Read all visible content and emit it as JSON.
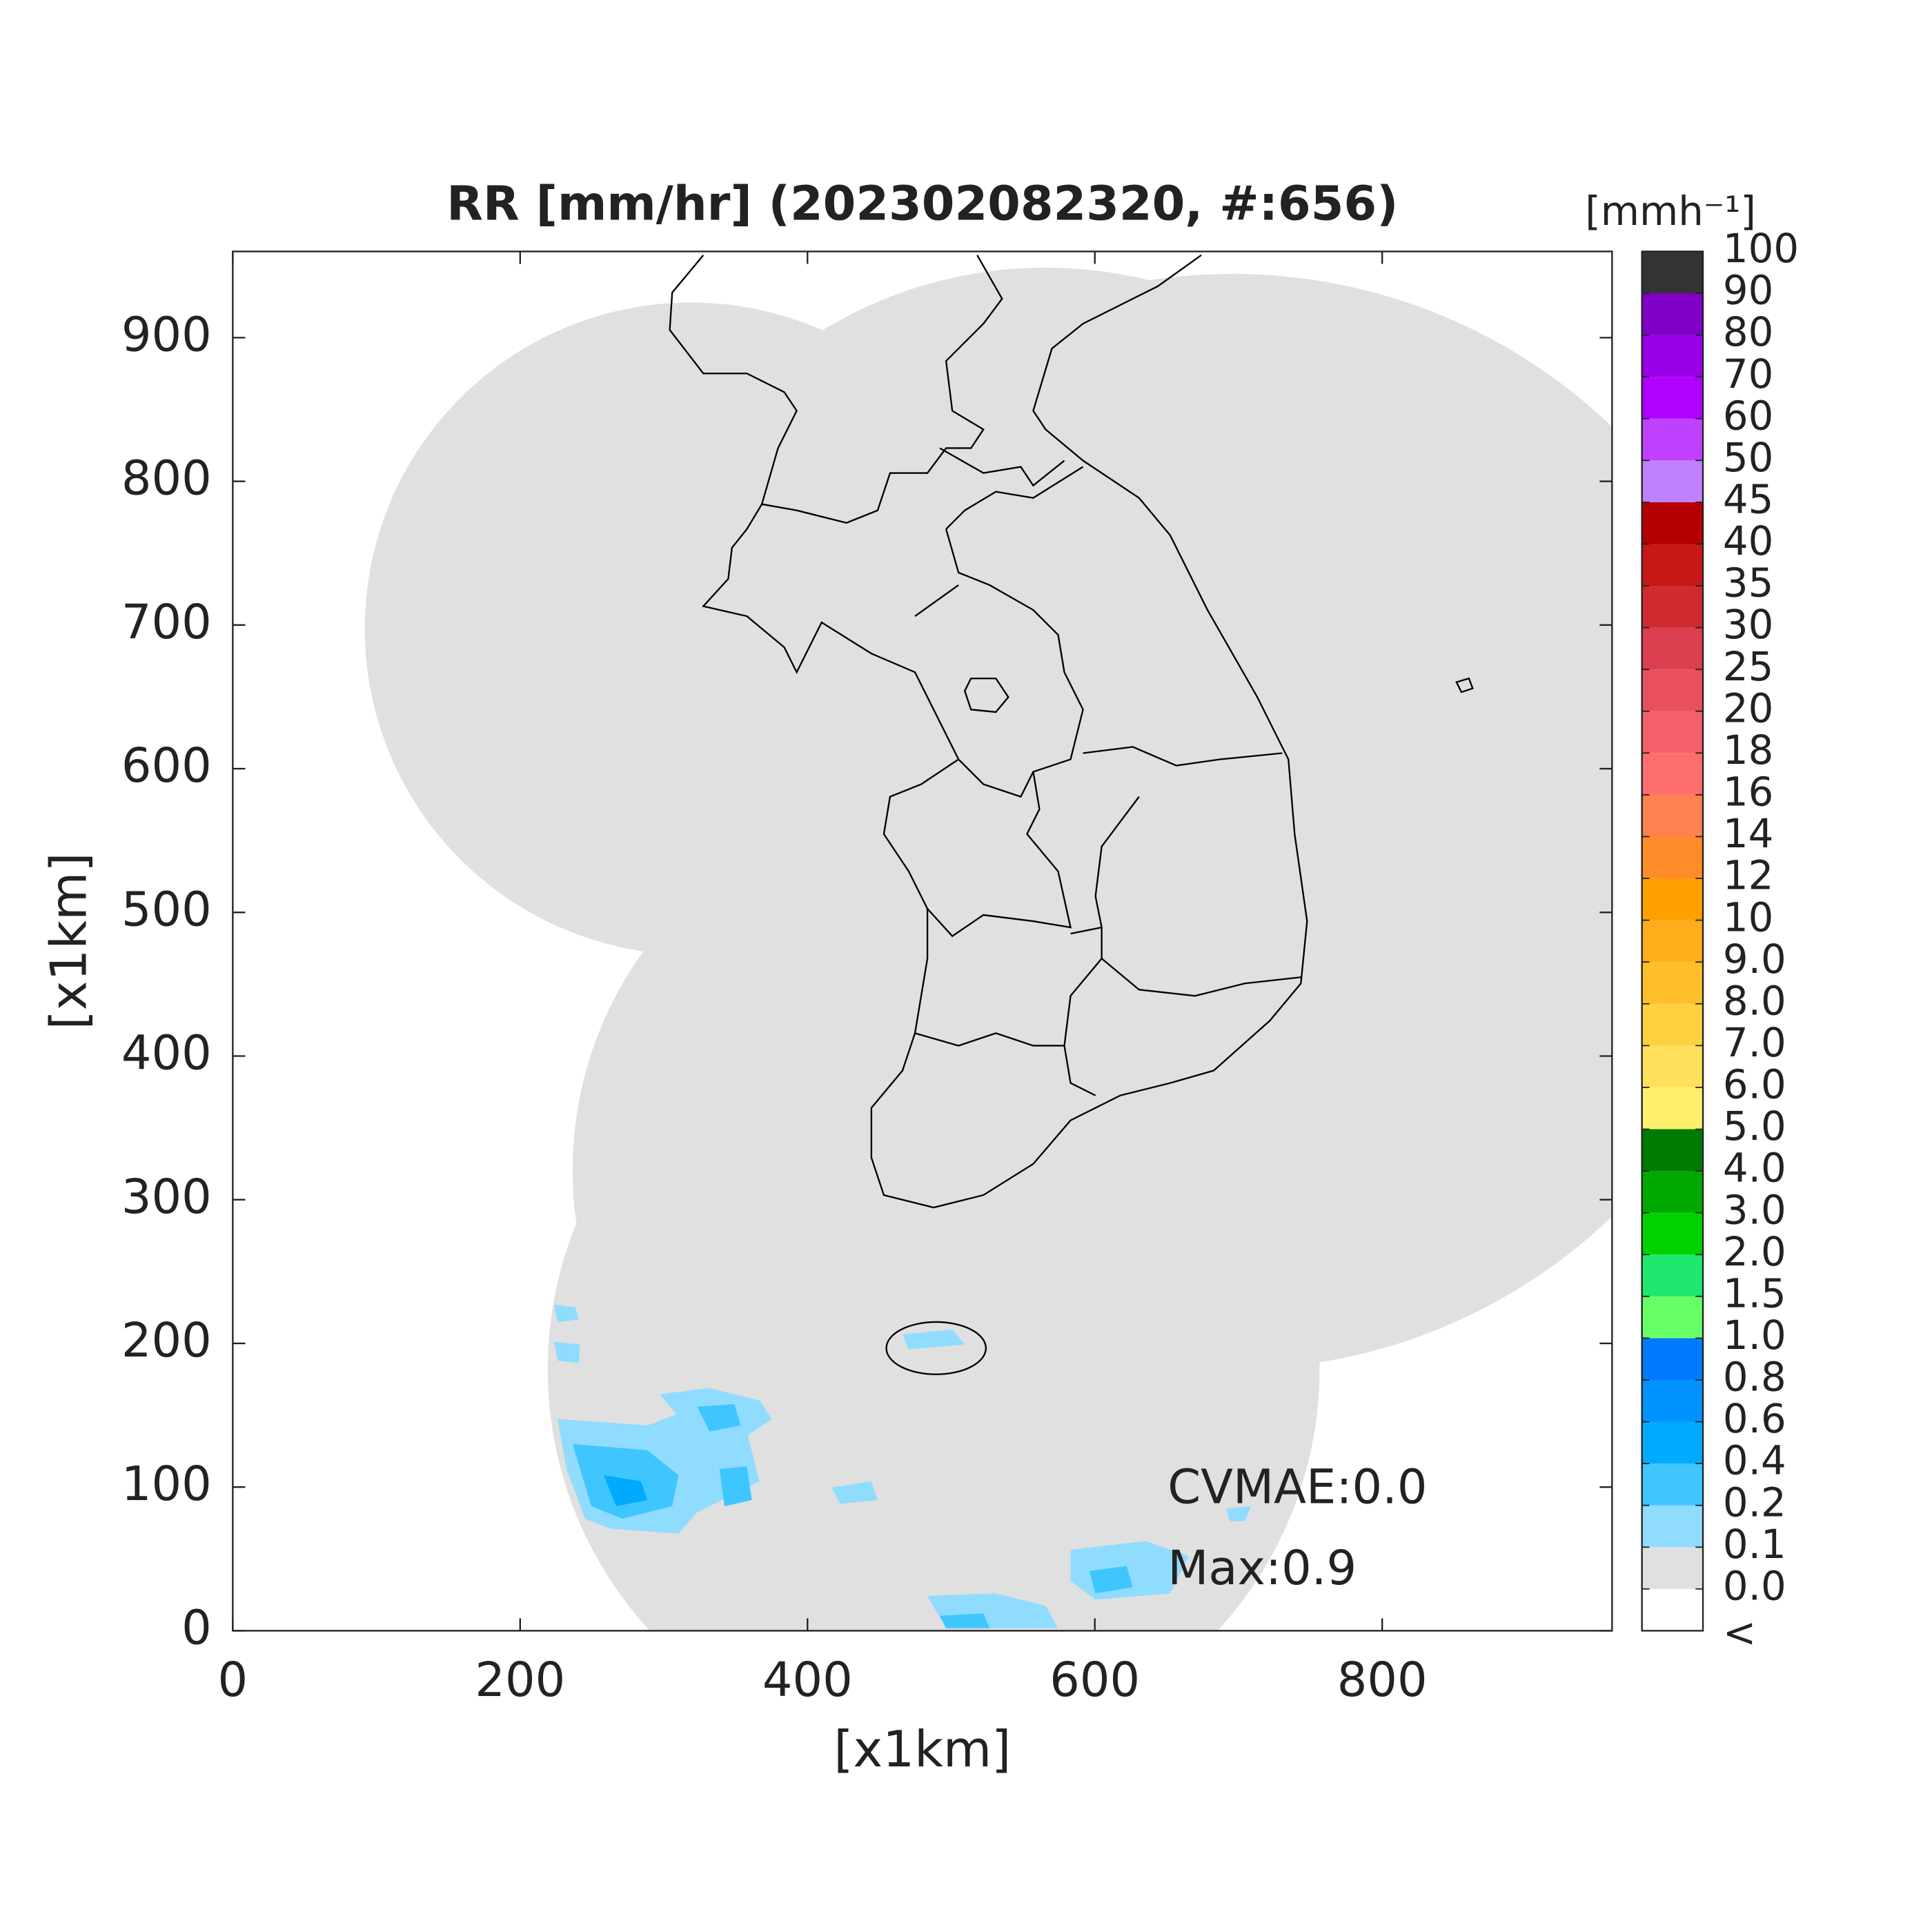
{
  "chart_data": {
    "type": "map",
    "title": "RR [mm/hr] (202302082320, #:656)",
    "xlabel": "[x1km]",
    "ylabel": "[x1km]",
    "xlim": [
      0,
      960
    ],
    "ylim": [
      0,
      960
    ],
    "xticks": [
      0,
      200,
      400,
      600,
      800
    ],
    "yticks": [
      0,
      100,
      200,
      300,
      400,
      500,
      600,
      700,
      800,
      900
    ],
    "annotations": [
      "CVMAE:0.0",
      "Max:0.9"
    ],
    "colorbar": {
      "unit": "[mmh⁻¹]",
      "labels": [
        "<",
        "0.0",
        "0.1",
        "0.2",
        "0.4",
        "0.6",
        "0.8",
        "1.0",
        "1.5",
        "2.0",
        "3.0",
        "4.0",
        "5.0",
        "6.0",
        "7.0",
        "8.0",
        "9.0",
        "10",
        "12",
        "14",
        "16",
        "18",
        "20",
        "25",
        "30",
        "35",
        "40",
        "45",
        "50",
        "60",
        "70",
        "80",
        "90",
        "100"
      ],
      "colors": [
        "#ffffff",
        "#e0e0e0",
        "#8fdcff",
        "#40c6ff",
        "#00aaff",
        "#0092ff",
        "#007bff",
        "#66ff66",
        "#1ee86e",
        "#00d200",
        "#00a800",
        "#007a00",
        "#fff06e",
        "#ffe05a",
        "#ffd040",
        "#ffbf2a",
        "#ffad1a",
        "#ffa000",
        "#ff8c28",
        "#ff8050",
        "#ff6e6e",
        "#f4606a",
        "#e85060",
        "#dc4050",
        "#d02a30",
        "#c81818",
        "#b40000",
        "#c080ff",
        "#c040ff",
        "#b000ff",
        "#9a00e8",
        "#8000c8",
        "#333333"
      ]
    }
  }
}
